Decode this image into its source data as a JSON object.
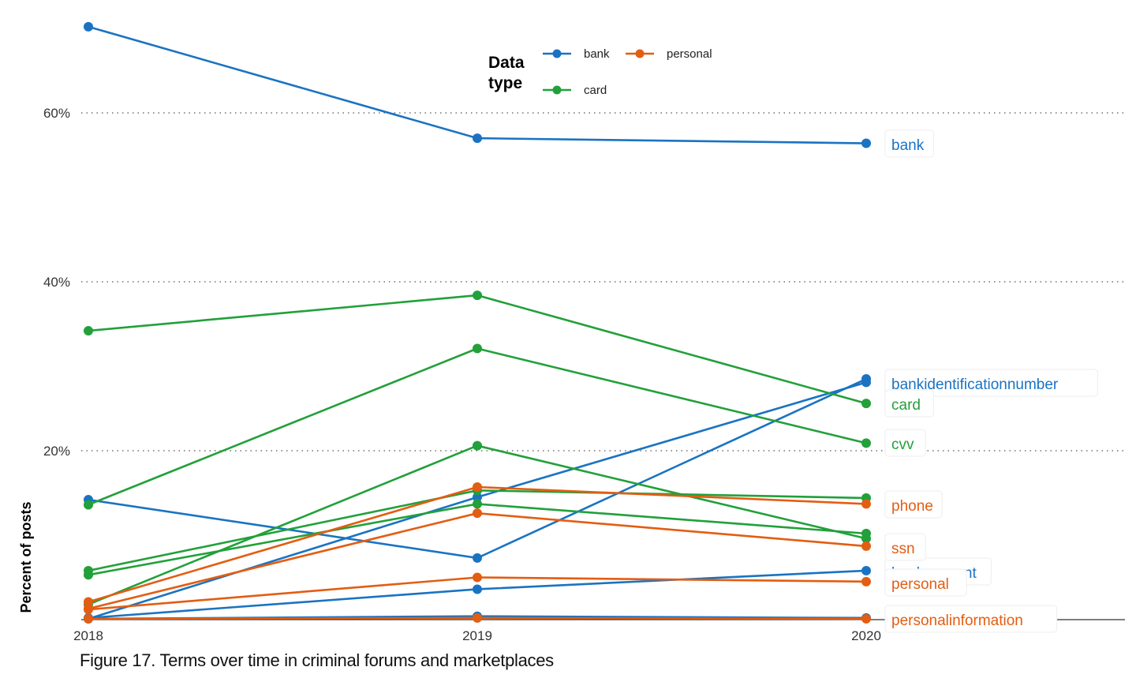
{
  "caption": "Figure 17. Terms over time in criminal forums and marketplaces",
  "chart_data": {
    "type": "line",
    "x": [
      "2018",
      "2019",
      "2020"
    ],
    "ylabel": "Percent of posts",
    "xlabel": "",
    "ylim": [
      0,
      70
    ],
    "yticks": [
      20,
      40,
      60
    ],
    "ytick_labels": [
      "20%",
      "40%",
      "60%"
    ],
    "grid": "horizontal-dotted",
    "legend": {
      "title_lines": [
        "Data",
        "type"
      ],
      "placement": "top-center",
      "entries": [
        {
          "name": "bank",
          "color": "#1a73c2"
        },
        {
          "name": "personal",
          "color": "#e35d12"
        },
        {
          "name": "card",
          "color": "#22a03a"
        }
      ]
    },
    "colors": {
      "bank": "#1a73c2",
      "personal": "#e35d12",
      "card": "#22a03a"
    },
    "series": [
      {
        "group": "bank",
        "label": "bank",
        "values": [
          70.2,
          57.0,
          56.4
        ]
      },
      {
        "group": "bank",
        "label": "bankidentificationnumber",
        "values": [
          14.2,
          7.3,
          28.5
        ]
      },
      {
        "group": "bank",
        "label": "",
        "values": [
          0.1,
          14.5,
          28.1
        ]
      },
      {
        "group": "bank",
        "label": "bankaccount",
        "values": [
          0.2,
          3.6,
          5.8
        ]
      },
      {
        "group": "bank",
        "label": "",
        "values": [
          0.1,
          0.4,
          0.2
        ]
      },
      {
        "group": "card",
        "label": "card",
        "values": [
          34.2,
          38.4,
          25.6
        ]
      },
      {
        "group": "card",
        "label": "cvv",
        "values": [
          13.6,
          32.1,
          20.9
        ]
      },
      {
        "group": "card",
        "label": "",
        "values": [
          1.8,
          20.6,
          9.6
        ]
      },
      {
        "group": "card",
        "label": "",
        "values": [
          5.8,
          15.3,
          14.4
        ]
      },
      {
        "group": "card",
        "label": "",
        "values": [
          5.3,
          13.7,
          10.2
        ]
      },
      {
        "group": "personal",
        "label": "phone",
        "values": [
          2.1,
          15.7,
          13.7
        ]
      },
      {
        "group": "personal",
        "label": "ssn",
        "values": [
          1.3,
          12.6,
          8.7
        ]
      },
      {
        "group": "personal",
        "label": "personal",
        "values": [
          1.2,
          5.0,
          4.5
        ]
      },
      {
        "group": "personal",
        "label": "personalinformation",
        "values": [
          0.1,
          0.2,
          0.1
        ]
      }
    ]
  }
}
